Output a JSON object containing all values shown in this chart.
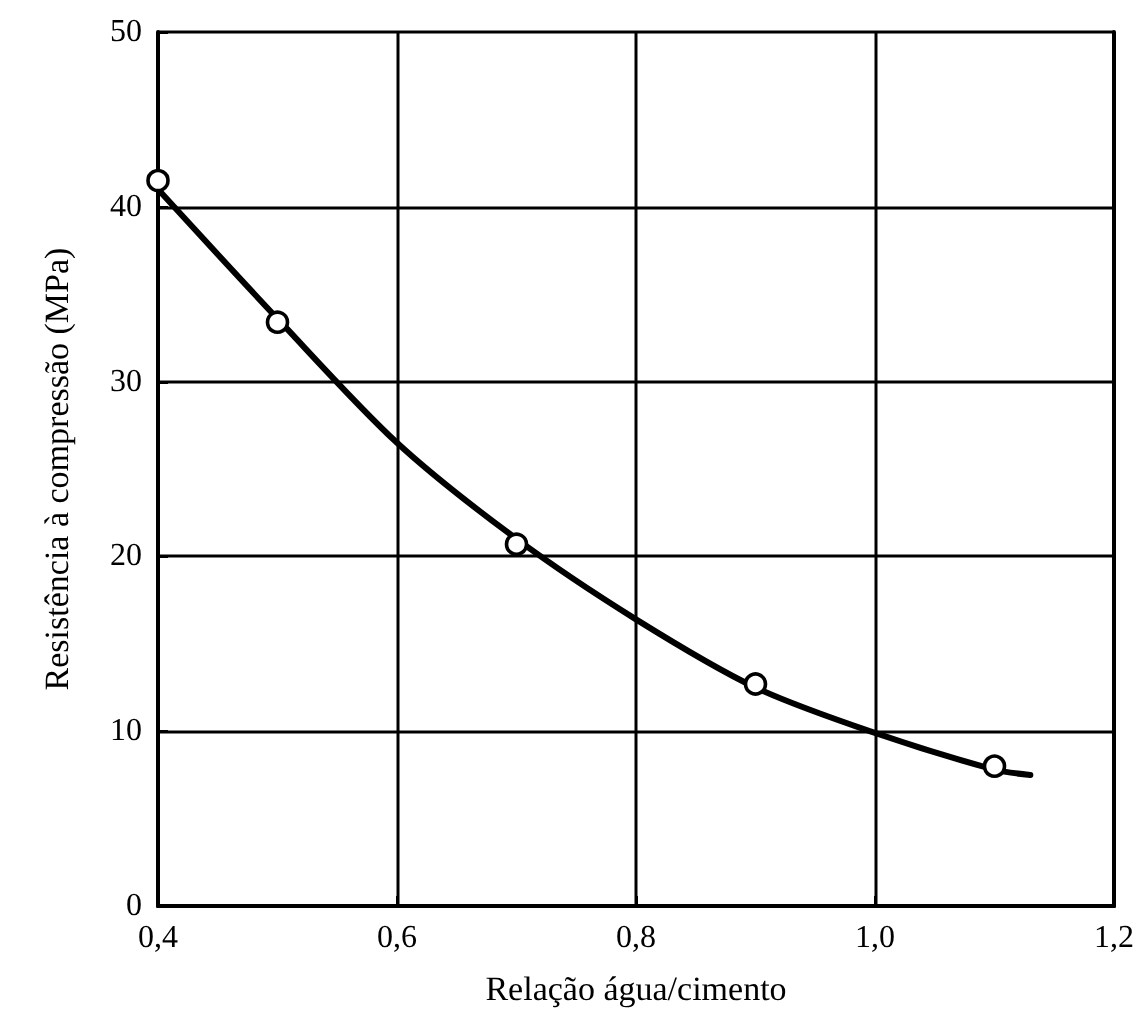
{
  "chart_data": {
    "type": "scatter",
    "xlabel": "Relação água/cimento",
    "ylabel": "Resistência à compressão (MPa)",
    "xlim": [
      0.4,
      1.2
    ],
    "xticks": [
      {
        "value": 0.4,
        "label": "0,4"
      },
      {
        "value": 0.6,
        "label": "0,6"
      },
      {
        "value": 0.8,
        "label": "0,8"
      },
      {
        "value": 1.0,
        "label": "1,0"
      },
      {
        "value": 1.2,
        "label": "1,2"
      }
    ],
    "ylim": [
      0,
      50
    ],
    "yticks": [
      0,
      10,
      20,
      30,
      40,
      50
    ],
    "grid": true,
    "marker": "circle",
    "series": [
      {
        "type": "line",
        "color": "#000000",
        "marker": "none",
        "x": [
          0.4,
          0.5,
          0.6,
          0.7,
          0.8,
          0.9,
          1.0,
          1.1,
          1.13
        ],
        "values": [
          41,
          33.6,
          26.5,
          21,
          16.4,
          12.5,
          9.9,
          7.8,
          7.5
        ]
      },
      {
        "color": "#000000",
        "x": [
          0.4,
          0.5,
          0.7,
          0.9,
          1.1
        ],
        "values": [
          41.5,
          33.4,
          20.7,
          12.7,
          8
        ]
      }
    ]
  }
}
